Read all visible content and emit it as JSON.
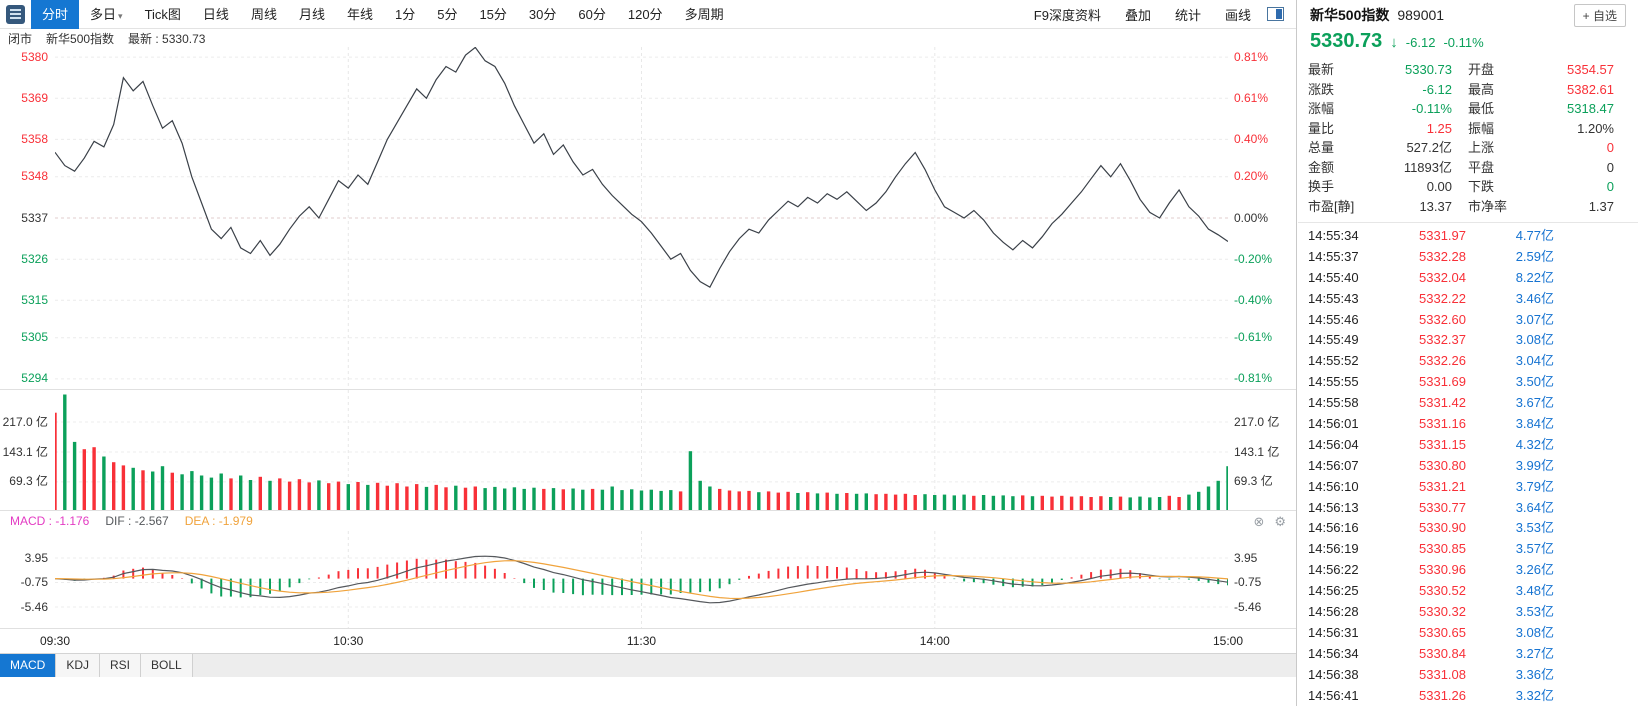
{
  "colors": {
    "up": "#f83038",
    "down": "#0ba05a",
    "neutral": "#333333",
    "blue": "#1673d1",
    "accent": "#1577d2",
    "magenta": "#e33bc3",
    "dea": "#f0a33c",
    "dif": "#55585c",
    "line": "#3a4048"
  },
  "icons": {
    "dropdown": "▾",
    "close_circle": "⊗",
    "gear": "⚙",
    "arrow_down": "↓"
  },
  "toolbar": {
    "tabs": [
      {
        "id": "fenshi",
        "label": "分时",
        "active": true
      },
      {
        "id": "duori",
        "label": "多日",
        "dropdown": true
      },
      {
        "id": "tick",
        "label": "Tick图"
      },
      {
        "id": "daily",
        "label": "日线"
      },
      {
        "id": "weekly",
        "label": "周线"
      },
      {
        "id": "monthly",
        "label": "月线"
      },
      {
        "id": "yearly",
        "label": "年线"
      },
      {
        "id": "min1",
        "label": "1分"
      },
      {
        "id": "min5",
        "label": "5分"
      },
      {
        "id": "min15",
        "label": "15分"
      },
      {
        "id": "min30",
        "label": "30分"
      },
      {
        "id": "min60",
        "label": "60分"
      },
      {
        "id": "min120",
        "label": "120分"
      },
      {
        "id": "multi-period",
        "label": "多周期"
      }
    ],
    "right_items": [
      {
        "id": "f9-depth",
        "label": "F9深度资料"
      },
      {
        "id": "overlay",
        "label": "叠加"
      },
      {
        "id": "statistics",
        "label": "统计"
      },
      {
        "id": "draw-line",
        "label": "画线"
      }
    ]
  },
  "status_bar": {
    "market_status": "闭市",
    "index_name": "新华500指数",
    "latest": "最新 : 5330.73"
  },
  "macd_header": {
    "items": [
      {
        "id": "macd",
        "text": "MACD : -1.176",
        "color": "magenta"
      },
      {
        "id": "dif",
        "text": "DIF : -2.567",
        "color": "dif"
      },
      {
        "id": "dea",
        "text": "DEA : -1.979",
        "color": "dea"
      }
    ]
  },
  "indicator_tabs": [
    {
      "label": "MACD",
      "active": true
    },
    {
      "label": "KDJ",
      "active": false
    },
    {
      "label": "RSI",
      "active": false
    },
    {
      "label": "BOLL",
      "active": false
    }
  ],
  "right_panel": {
    "title": "新华500指数",
    "code": "989001",
    "add_watchlist": "+ 自选",
    "price": {
      "value": "5330.73",
      "change": "-6.12",
      "change_pct": "-0.11%"
    },
    "stats": [
      {
        "id": "latest",
        "label": "最新",
        "value": "5330.73",
        "color": "down"
      },
      {
        "id": "open",
        "label": "开盘",
        "value": "5354.57",
        "color": "up"
      },
      {
        "id": "change",
        "label": "涨跌",
        "value": "-6.12",
        "color": "down"
      },
      {
        "id": "high",
        "label": "最高",
        "value": "5382.61",
        "color": "up"
      },
      {
        "id": "change-pct",
        "label": "涨幅",
        "value": "-0.11%",
        "color": "down"
      },
      {
        "id": "low",
        "label": "最低",
        "value": "5318.47",
        "color": "down"
      },
      {
        "id": "vol-ratio",
        "label": "量比",
        "value": "1.25",
        "color": "up"
      },
      {
        "id": "amplitude",
        "label": "振幅",
        "value": "1.20%",
        "color": "neutral"
      },
      {
        "id": "total-vol",
        "label": "总量",
        "value": "527.2亿",
        "color": "neutral"
      },
      {
        "id": "advancers",
        "label": "上涨",
        "value": "0",
        "color": "up"
      },
      {
        "id": "turnover",
        "label": "金额",
        "value": "11893亿",
        "color": "neutral"
      },
      {
        "id": "unchanged",
        "label": "平盘",
        "value": "0",
        "color": "neutral"
      },
      {
        "id": "turnover-rate",
        "label": "换手",
        "value": "0.00",
        "color": "neutral"
      },
      {
        "id": "decliners",
        "label": "下跌",
        "value": "0",
        "color": "down"
      },
      {
        "id": "pe-static",
        "label": "市盈[静]",
        "value": "13.37",
        "color": "neutral"
      },
      {
        "id": "pb",
        "label": "市净率",
        "value": "1.37",
        "color": "neutral"
      }
    ],
    "ticks": [
      {
        "time": "14:55:34",
        "price": "5331.97",
        "vol": "4.77亿"
      },
      {
        "time": "14:55:37",
        "price": "5332.28",
        "vol": "2.59亿"
      },
      {
        "time": "14:55:40",
        "price": "5332.04",
        "vol": "8.22亿"
      },
      {
        "time": "14:55:43",
        "price": "5332.22",
        "vol": "3.46亿"
      },
      {
        "time": "14:55:46",
        "price": "5332.60",
        "vol": "3.07亿"
      },
      {
        "time": "14:55:49",
        "price": "5332.37",
        "vol": "3.08亿"
      },
      {
        "time": "14:55:52",
        "price": "5332.26",
        "vol": "3.04亿"
      },
      {
        "time": "14:55:55",
        "price": "5331.69",
        "vol": "3.50亿"
      },
      {
        "time": "14:55:58",
        "price": "5331.42",
        "vol": "3.67亿"
      },
      {
        "time": "14:56:01",
        "price": "5331.16",
        "vol": "3.84亿"
      },
      {
        "time": "14:56:04",
        "price": "5331.15",
        "vol": "4.32亿"
      },
      {
        "time": "14:56:07",
        "price": "5330.80",
        "vol": "3.99亿"
      },
      {
        "time": "14:56:10",
        "price": "5331.21",
        "vol": "3.79亿"
      },
      {
        "time": "14:56:13",
        "price": "5330.77",
        "vol": "3.64亿"
      },
      {
        "time": "14:56:16",
        "price": "5330.90",
        "vol": "3.53亿"
      },
      {
        "time": "14:56:19",
        "price": "5330.85",
        "vol": "3.57亿"
      },
      {
        "time": "14:56:22",
        "price": "5330.96",
        "vol": "3.26亿"
      },
      {
        "time": "14:56:25",
        "price": "5330.52",
        "vol": "3.48亿"
      },
      {
        "time": "14:56:28",
        "price": "5330.32",
        "vol": "3.53亿"
      },
      {
        "time": "14:56:31",
        "price": "5330.65",
        "vol": "3.08亿"
      },
      {
        "time": "14:56:34",
        "price": "5330.84",
        "vol": "3.27亿"
      },
      {
        "time": "14:56:38",
        "price": "5331.08",
        "vol": "3.36亿"
      },
      {
        "time": "14:56:41",
        "price": "5331.26",
        "vol": "3.32亿"
      }
    ]
  },
  "chart_data": {
    "type": "line",
    "title": "新华500指数 分时走势",
    "prev_close": 5336.85,
    "x_ticks": [
      "09:30",
      "10:30",
      "11:30",
      "14:00",
      "15:00"
    ],
    "price_axis": {
      "ylim": [
        5291.3,
        5382.7
      ],
      "levels": [
        5380,
        5369,
        5358,
        5348,
        5337,
        5326,
        5315,
        5305,
        5294
      ],
      "labels_left": [
        "5380",
        "5369",
        "5358",
        "5348",
        "5337",
        "5326",
        "5315",
        "5305",
        "5294"
      ],
      "labels_right": [
        "0.81%",
        "0.61%",
        "0.40%",
        "0.20%",
        "0.00%",
        "-0.20%",
        "-0.40%",
        "-0.61%",
        "-0.81%"
      ],
      "label_colors": [
        "up",
        "up",
        "up",
        "up",
        "neutral",
        "down",
        "down",
        "down",
        "down"
      ]
    },
    "volume_axis": {
      "ylim": [
        0,
        296
      ],
      "levels": [
        217.0,
        143.1,
        69.3
      ],
      "labels": [
        "217.0 亿",
        "143.1 亿",
        "69.3 亿"
      ]
    },
    "macd_axis": {
      "ylim": [
        -9.5,
        9.15
      ],
      "levels": [
        3.95,
        -0.75,
        -5.46
      ],
      "labels": [
        "3.95",
        "-0.75",
        "-5.46"
      ]
    },
    "macd_values": {
      "macd": -1.176,
      "dif": -2.567,
      "dea": -1.979
    },
    "prices": [
      5354.57,
      5351.0,
      5349.5,
      5353.0,
      5357.5,
      5356.0,
      5362.0,
      5374.5,
      5371.0,
      5373.5,
      5367.0,
      5361.0,
      5363.0,
      5357.0,
      5348.0,
      5341.0,
      5334.0,
      5331.5,
      5334.5,
      5329.0,
      5327.5,
      5331.0,
      5327.0,
      5330.0,
      5334.0,
      5337.5,
      5340.0,
      5337.0,
      5342.0,
      5347.0,
      5345.0,
      5348.5,
      5346.0,
      5352.0,
      5358.0,
      5362.5,
      5367.0,
      5371.5,
      5369.0,
      5374.0,
      5377.5,
      5376.0,
      5380.5,
      5382.6,
      5379.0,
      5377.5,
      5373.0,
      5367.0,
      5362.0,
      5357.0,
      5359.5,
      5354.0,
      5356.5,
      5352.0,
      5348.5,
      5350.0,
      5346.0,
      5343.0,
      5340.5,
      5338.0,
      5336.0,
      5333.0,
      5329.5,
      5326.0,
      5327.5,
      5323.0,
      5320.0,
      5318.5,
      5323.5,
      5328.0,
      5331.5,
      5334.0,
      5333.0,
      5336.5,
      5339.0,
      5341.5,
      5340.0,
      5342.5,
      5341.0,
      5343.5,
      5342.0,
      5344.0,
      5341.5,
      5339.0,
      5341.0,
      5344.0,
      5348.0,
      5351.5,
      5354.5,
      5350.0,
      5344.5,
      5340.0,
      5338.5,
      5337.0,
      5339.0,
      5336.5,
      5333.0,
      5330.5,
      5328.5,
      5331.0,
      5329.0,
      5332.0,
      5335.5,
      5338.0,
      5341.0,
      5344.0,
      5347.5,
      5351.0,
      5348.0,
      5351.5,
      5347.0,
      5342.0,
      5338.5,
      5337.0,
      5341.0,
      5344.5,
      5340.0,
      5337.5,
      5334.0,
      5332.5,
      5330.73
    ],
    "volumes": [
      240,
      285,
      168,
      150,
      155,
      132,
      118,
      110,
      104,
      98,
      95,
      108,
      92,
      88,
      96,
      85,
      80,
      90,
      78,
      85,
      74,
      82,
      72,
      78,
      70,
      76,
      68,
      73,
      66,
      70,
      64,
      69,
      62,
      67,
      60,
      66,
      58,
      64,
      57,
      62,
      56,
      60,
      55,
      58,
      54,
      57,
      53,
      56,
      52,
      55,
      52,
      54,
      51,
      53,
      50,
      52,
      50,
      58,
      49,
      51,
      48,
      50,
      47,
      49,
      46,
      145,
      72,
      58,
      52,
      48,
      46,
      47,
      44,
      46,
      43,
      45,
      42,
      44,
      41,
      43,
      40,
      42,
      40,
      41,
      39,
      40,
      38,
      40,
      37,
      39,
      37,
      38,
      36,
      38,
      35,
      37,
      35,
      36,
      34,
      36,
      34,
      35,
      33,
      35,
      33,
      34,
      32,
      34,
      32,
      33,
      31,
      33,
      31,
      32,
      35,
      32,
      38,
      45,
      58,
      72,
      108
    ]
  }
}
